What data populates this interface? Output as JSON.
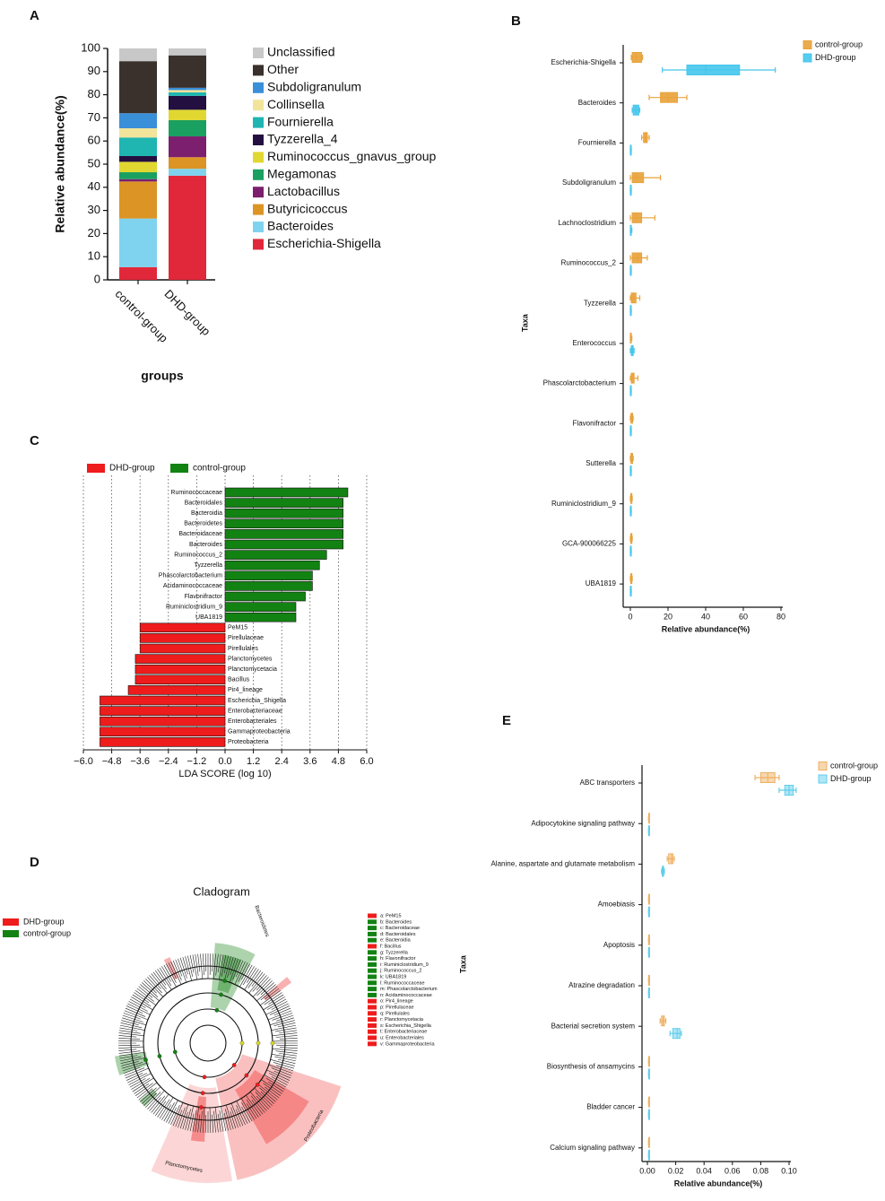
{
  "chart_data": [
    {
      "panel": "A",
      "type": "stacked_bar",
      "ylabel": "Relative abundance(%)",
      "xlabel": "groups",
      "categories": [
        "control-group",
        "DHD-group"
      ],
      "ylim": [
        0,
        100
      ],
      "yticks": [
        0,
        10,
        20,
        30,
        40,
        50,
        60,
        70,
        80,
        90,
        100
      ],
      "series": [
        {
          "name": "Escherichia-Shigella",
          "color": "#e0283a",
          "values": [
            5.5,
            45
          ]
        },
        {
          "name": "Bacteroides",
          "color": "#7fd3ee",
          "values": [
            21,
            3
          ]
        },
        {
          "name": "Butyricicoccus",
          "color": "#dc9425",
          "values": [
            16,
            5
          ]
        },
        {
          "name": "Lactobacillus",
          "color": "#7b1f6e",
          "values": [
            1,
            9
          ]
        },
        {
          "name": "Megamonas",
          "color": "#1aa060",
          "values": [
            3,
            7
          ]
        },
        {
          "name": "Ruminococcus_gnavus_group",
          "color": "#e0d830",
          "values": [
            4.5,
            4.5
          ]
        },
        {
          "name": "Tyzzerella_4",
          "color": "#231040",
          "values": [
            2.5,
            6
          ]
        },
        {
          "name": "Fournierella",
          "color": "#1fb5b0",
          "values": [
            8,
            1.5
          ]
        },
        {
          "name": "Collinsella",
          "color": "#f2e49a",
          "values": [
            4,
            1
          ]
        },
        {
          "name": "Subdoligranulum",
          "color": "#3a8fd9",
          "values": [
            6.5,
            1
          ]
        },
        {
          "name": "Other",
          "color": "#3a302c",
          "values": [
            22.5,
            14
          ]
        },
        {
          "name": "Unclassified",
          "color": "#c8c8c8",
          "values": [
            5.5,
            3
          ]
        }
      ]
    },
    {
      "panel": "B",
      "type": "boxplot",
      "xlabel": "Relative abundance(%)",
      "ylabel": "Taxa",
      "categories": [
        "Escherichia-Shigella",
        "Bacteroides",
        "Fournierella",
        "Subdoligranulum",
        "Lachnoclostridium",
        "Ruminococcus_2",
        "Tyzzerella",
        "Enterococcus",
        "Phascolarctobacterium",
        "Flavonifractor",
        "Sutterella",
        "Ruminiclostridium_9",
        "GCA-900066225",
        "UBA1819"
      ],
      "xlim": [
        0,
        80
      ],
      "xticks": [
        0,
        20,
        40,
        60,
        80
      ],
      "series": [
        {
          "name": "control-group",
          "color": "#e8a23a",
          "boxes": [
            [
              0.5,
              1,
              3,
              6,
              6.5
            ],
            [
              10,
              16,
              20,
              25,
              30
            ],
            [
              6,
              7,
              8,
              9,
              10
            ],
            [
              0,
              1,
              3,
              7,
              16
            ],
            [
              0,
              1,
              3,
              6,
              13
            ],
            [
              0,
              1,
              4,
              6,
              9
            ],
            [
              0,
              0.5,
              1.5,
              3,
              5
            ],
            [
              0,
              0,
              0.2,
              0.5,
              0.8
            ],
            [
              0,
              0.5,
              1,
              2,
              4
            ],
            [
              0,
              0.3,
              0.8,
              1.2,
              1.5
            ],
            [
              0,
              0.3,
              0.8,
              1.2,
              1.5
            ],
            [
              0,
              0.2,
              0.5,
              0.8,
              1
            ],
            [
              0,
              0.2,
              0.5,
              0.8,
              1
            ],
            [
              0,
              0.2,
              0.5,
              0.8,
              1
            ]
          ]
        },
        {
          "name": "DHD-group",
          "color": "#45c6ec",
          "boxes": [
            [
              17,
              30,
              40,
              58,
              77
            ],
            [
              1,
              1.5,
              3,
              4.5,
              5
            ],
            [
              0,
              0,
              0.1,
              0.3,
              0.5
            ],
            [
              0,
              0,
              0.1,
              0.3,
              0.5
            ],
            [
              0,
              0,
              0.2,
              0.5,
              0.8
            ],
            [
              0,
              0,
              0.1,
              0.3,
              0.5
            ],
            [
              0,
              0,
              0.1,
              0.3,
              0.5
            ],
            [
              0,
              0.5,
              1,
              1.5,
              2
            ],
            [
              0,
              0,
              0.1,
              0.3,
              0.5
            ],
            [
              0,
              0,
              0.1,
              0.3,
              0.5
            ],
            [
              0,
              0,
              0.1,
              0.3,
              0.5
            ],
            [
              0,
              0,
              0.1,
              0.3,
              0.5
            ],
            [
              0,
              0,
              0.1,
              0.3,
              0.5
            ],
            [
              0,
              0,
              0.1,
              0.3,
              0.5
            ]
          ]
        }
      ]
    },
    {
      "panel": "C",
      "type": "lda_bar",
      "xlabel": "LDA SCORE (log 10)",
      "grid": true,
      "xlim": [
        -6,
        6
      ],
      "xticks": [
        {
          "value": -6,
          "label": "−6.0"
        },
        {
          "value": -4.8,
          "label": "−4.8"
        },
        {
          "value": -3.6,
          "label": "−3.6"
        },
        {
          "value": -2.4,
          "label": "−2.4"
        },
        {
          "value": -1.2,
          "label": "−1.2"
        },
        {
          "value": 0,
          "label": "0.0"
        },
        1.2,
        2.4,
        3.6,
        4.8,
        {
          "value": 6,
          "label": "6.0"
        }
      ],
      "series": [
        {
          "name": "DHD-group",
          "color": "#ee1c1c",
          "categories": [
            "PeM15",
            "Pirellulaceae",
            "Pirellulales",
            "Planctomycetes",
            "Planctomycetacia",
            "Bacillus",
            "Pir4_lineage",
            "Escherichia_Shigella",
            "Enterobacteriaceae",
            "Enterobacteriales",
            "Gammaproteobacteria",
            "Proteobacteria"
          ],
          "values": [
            -3.6,
            -3.6,
            -3.6,
            -3.8,
            -3.8,
            -3.8,
            -4.1,
            -5.3,
            -5.3,
            -5.3,
            -5.3,
            -5.3
          ]
        },
        {
          "name": "control-group",
          "color": "#128212",
          "categories": [
            "Ruminococcaceae",
            "Bacteroidales",
            "Bacteroidia",
            "Bacteroidetes",
            "Bacteroidaceae",
            "Bacteroides",
            "Ruminococcus_2",
            "Tyzzerella",
            "Phascolarctobacterium",
            "Acidaminococcaceae",
            "Flavonifractor",
            "Ruminiclostridium_9",
            "UBA1819"
          ],
          "values": [
            5.2,
            5.0,
            5.0,
            5.0,
            5.0,
            5.0,
            4.3,
            4.0,
            3.7,
            3.7,
            3.4,
            3.0,
            3.0
          ]
        }
      ]
    },
    {
      "panel": "E",
      "type": "boxplot",
      "xlabel": "Relative abundance(%)",
      "ylabel": "Taxa",
      "categories": [
        "ABC transporters",
        "Adipocytokine signaling pathway",
        "Alanine, aspartate and glutamate metabolism",
        "Amoebiasis",
        "Apoptosis",
        "Atrazine degradation",
        "Bacterial secretion system",
        "Biosynthesis of ansamycins",
        "Bladder cancer",
        "Calcium signaling pathway"
      ],
      "xlim": [
        0,
        0.1
      ],
      "xticks": [
        {
          "value": 0,
          "label": "0.00"
        },
        0.02,
        0.04,
        0.06,
        0.08,
        {
          "value": 0.1,
          "label": "0.10"
        }
      ],
      "series": [
        {
          "name": "control-group",
          "color": "#eeb060",
          "boxes": [
            [
              0.076,
              0.08,
              0.085,
              0.09,
              0.093
            ],
            [
              0.0008,
              0.0009,
              0.001,
              0.0011,
              0.0012
            ],
            [
              0.014,
              0.015,
              0.017,
              0.018,
              0.019
            ],
            [
              0.0008,
              0.0009,
              0.001,
              0.0011,
              0.0012
            ],
            [
              0.0008,
              0.0009,
              0.001,
              0.0011,
              0.0012
            ],
            [
              0.0008,
              0.0009,
              0.001,
              0.0011,
              0.0012
            ],
            [
              0.009,
              0.01,
              0.011,
              0.012,
              0.013
            ],
            [
              0.0008,
              0.0009,
              0.001,
              0.0011,
              0.0012
            ],
            [
              0.0008,
              0.0009,
              0.001,
              0.0011,
              0.0012
            ],
            [
              0.0008,
              0.0009,
              0.001,
              0.0011,
              0.0012
            ]
          ]
        },
        {
          "name": "DHD-group",
          "color": "#5fcdeb",
          "boxes": [
            [
              0.093,
              0.097,
              0.1,
              0.103,
              0.105
            ],
            [
              0.0008,
              0.0009,
              0.001,
              0.0011,
              0.0012
            ],
            [
              0.01,
              0.0105,
              0.011,
              0.0115,
              0.012
            ],
            [
              0.0008,
              0.0009,
              0.001,
              0.0011,
              0.0012
            ],
            [
              0.0008,
              0.0009,
              0.001,
              0.0011,
              0.0012
            ],
            [
              0.0008,
              0.0009,
              0.001,
              0.0011,
              0.0012
            ],
            [
              0.016,
              0.018,
              0.021,
              0.023,
              0.024
            ],
            [
              0.0008,
              0.0009,
              0.001,
              0.0011,
              0.0012
            ],
            [
              0.0008,
              0.0009,
              0.001,
              0.0011,
              0.0012
            ],
            [
              0.0008,
              0.0009,
              0.001,
              0.0011,
              0.0012
            ]
          ]
        }
      ]
    }
  ],
  "cladogram": {
    "panel": "D",
    "title": "Cladogram",
    "legend": [
      {
        "name": "DHD-group",
        "color": "#ee1c1c"
      },
      {
        "name": "control-group",
        "color": "#128212"
      }
    ],
    "key": [
      {
        "label": "a: PeM15",
        "color": "#ee1c1c"
      },
      {
        "label": "b: Bacteroides",
        "color": "#128212"
      },
      {
        "label": "c: Bacteroidaceae",
        "color": "#128212"
      },
      {
        "label": "d: Bacteroidales",
        "color": "#128212"
      },
      {
        "label": "e: Bacteroidia",
        "color": "#128212"
      },
      {
        "label": "f: Bacillus",
        "color": "#ee1c1c"
      },
      {
        "label": "g: Tyzzerella",
        "color": "#128212"
      },
      {
        "label": "h: Flavonifractor",
        "color": "#128212"
      },
      {
        "label": "i: Ruminiclostridium_9",
        "color": "#128212"
      },
      {
        "label": "j: Ruminococcus_2",
        "color": "#128212"
      },
      {
        "label": "k: UBA1819",
        "color": "#128212"
      },
      {
        "label": "l: Ruminococcaceae",
        "color": "#128212"
      },
      {
        "label": "m: Phascolarctobacterium",
        "color": "#128212"
      },
      {
        "label": "n: Acidaminococcaceae",
        "color": "#128212"
      },
      {
        "label": "o: Pir4_lineage",
        "color": "#ee1c1c"
      },
      {
        "label": "p: Pirellulaceae",
        "color": "#ee1c1c"
      },
      {
        "label": "q: Pirellulales",
        "color": "#ee1c1c"
      },
      {
        "label": "r: Planctomycetacia",
        "color": "#ee1c1c"
      },
      {
        "label": "s: Escherichia_Shigella",
        "color": "#ee1c1c"
      },
      {
        "label": "t: Enterobacteriaceae",
        "color": "#ee1c1c"
      },
      {
        "label": "u: Enterobacteriales",
        "color": "#ee1c1c"
      },
      {
        "label": "v: Gammaproteobacteria",
        "color": "#ee1c1c"
      }
    ],
    "clade_labels": [
      "Bacteroidetes",
      "Proteobacteria",
      "Planctomycetes"
    ]
  }
}
